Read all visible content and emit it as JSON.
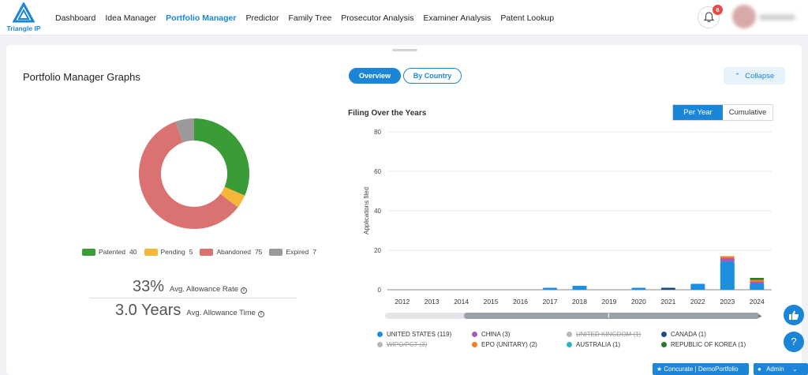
{
  "brand": {
    "name": "Triangle IP"
  },
  "nav": {
    "items": [
      {
        "label": "Dashboard"
      },
      {
        "label": "Idea Manager"
      },
      {
        "label": "Portfolio Manager"
      },
      {
        "label": "Predictor"
      },
      {
        "label": "Family Tree"
      },
      {
        "label": "Prosecutor Analysis"
      },
      {
        "label": "Examiner Analysis"
      },
      {
        "label": "Patent Lookup"
      }
    ],
    "active": "Portfolio Manager"
  },
  "notifications": {
    "count": "6"
  },
  "page": {
    "title": "Portfolio Manager Graphs",
    "view_tabs": {
      "overview": "Overview",
      "by_country": "By Country"
    },
    "collapse_label": "Collapse"
  },
  "status": {
    "items": [
      {
        "label": "Patented",
        "count": "40",
        "color": "#3a9c36"
      },
      {
        "label": "Pending",
        "count": "5",
        "color": "#f6b739"
      },
      {
        "label": "Abandoned",
        "count": "75",
        "color": "#da7272"
      },
      {
        "label": "Expired",
        "count": "7",
        "color": "#9a9a9a"
      }
    ]
  },
  "stats": {
    "allowance_rate": {
      "value": "33%",
      "label": "Avg. Allowance Rate"
    },
    "allowance_time": {
      "value": "3.0 Years",
      "label": "Avg. Allowance Time"
    }
  },
  "filing": {
    "title": "Filing Over the Years",
    "toggle": {
      "per_year": "Per Year",
      "cumulative": "Cumulative"
    }
  },
  "chart_data": {
    "type": "bar",
    "title": "Filing Over the Years",
    "ylabel": "Applications filed",
    "xlabel": "",
    "ylim": [
      0,
      80
    ],
    "yticks": [
      0,
      20,
      40,
      60,
      80
    ],
    "categories": [
      "2012",
      "2013",
      "2014",
      "2015",
      "2016",
      "2017",
      "2018",
      "2019",
      "2020",
      "2021",
      "2022",
      "2023",
      "2024"
    ],
    "stacked": true,
    "grid": true,
    "series": [
      {
        "name": "UNITED STATES (119)",
        "color": "#1b8fe0",
        "visible": true,
        "values": [
          0,
          0,
          0,
          0,
          0,
          1,
          2,
          0,
          1,
          0,
          3,
          14,
          3
        ]
      },
      {
        "name": "CHINA (3)",
        "color": "#a45ac0",
        "visible": true,
        "values": [
          0,
          0,
          0,
          0,
          0,
          0,
          0,
          0,
          0,
          0,
          0,
          2,
          1
        ]
      },
      {
        "name": "EPO (UNITARY) (2)",
        "color": "#f07f24",
        "visible": true,
        "values": [
          0,
          0,
          0,
          0,
          0,
          0,
          0,
          0,
          0,
          0,
          0,
          1,
          1
        ]
      },
      {
        "name": "AUSTRALIA (1)",
        "color": "#22b8c9",
        "visible": true,
        "values": [
          0,
          0,
          0,
          0,
          0,
          0,
          0,
          0,
          0,
          0,
          0,
          0,
          0
        ]
      },
      {
        "name": "CANADA (1)",
        "color": "#1a4d80",
        "visible": true,
        "values": [
          0,
          0,
          0,
          0,
          0,
          0,
          0,
          0,
          0,
          1,
          0,
          0,
          0
        ]
      },
      {
        "name": "REPUBLIC OF KOREA (1)",
        "color": "#2b7a2b",
        "visible": true,
        "values": [
          0,
          0,
          0,
          0,
          0,
          0,
          0,
          0,
          0,
          0,
          0,
          0,
          1
        ]
      }
    ],
    "legend": [
      {
        "name": "UNITED STATES (119)",
        "color": "#1b8fe0",
        "visible": true
      },
      {
        "name": "WIPO/PCT (3)",
        "color": "#9a9a9a",
        "visible": false
      },
      {
        "name": "CHINA (3)",
        "color": "#a45ac0",
        "visible": true
      },
      {
        "name": "EPO (UNITARY) (2)",
        "color": "#f07f24",
        "visible": true
      },
      {
        "name": "UNITED KINGDOM (1)",
        "color": "#9a9a9a",
        "visible": false
      },
      {
        "name": "AUSTRALIA (1)",
        "color": "#22b8c9",
        "visible": true
      },
      {
        "name": "CANADA (1)",
        "color": "#1a4d80",
        "visible": true
      },
      {
        "name": "REPUBLIC OF KOREA (1)",
        "color": "#2b7a2b",
        "visible": true
      }
    ]
  },
  "footer": {
    "chip1": "Concurate | DemoPortfolio",
    "chip2": "Admin"
  }
}
